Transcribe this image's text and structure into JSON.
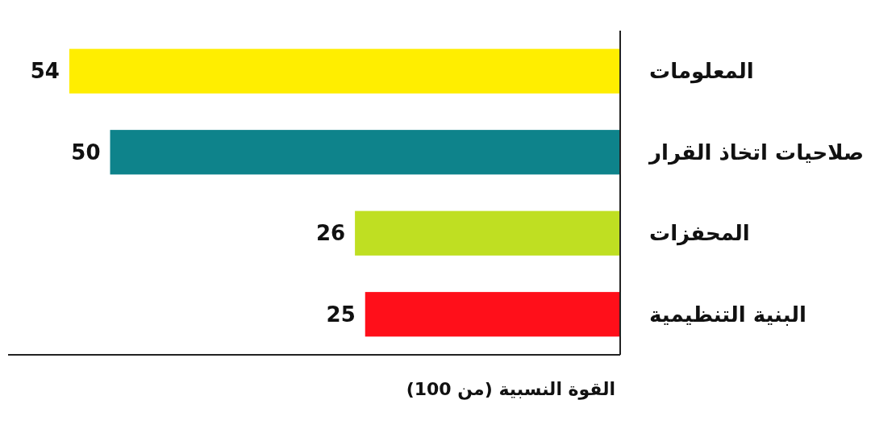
{
  "chart_data": {
    "type": "bar",
    "orientation": "horizontal",
    "categories": [
      "المعلومات",
      "صلاحيات اتخاذ القرار",
      "المحفزات",
      "البنية التنظيمية"
    ],
    "values": [
      54,
      50,
      26,
      25
    ],
    "colors": [
      "#ffee00",
      "#0e838b",
      "#bfdf22",
      "#ff0f1a"
    ],
    "xlim": [
      60,
      0
    ],
    "xlabel": "القوة النسبية (من 100)",
    "data_labels": true
  }
}
